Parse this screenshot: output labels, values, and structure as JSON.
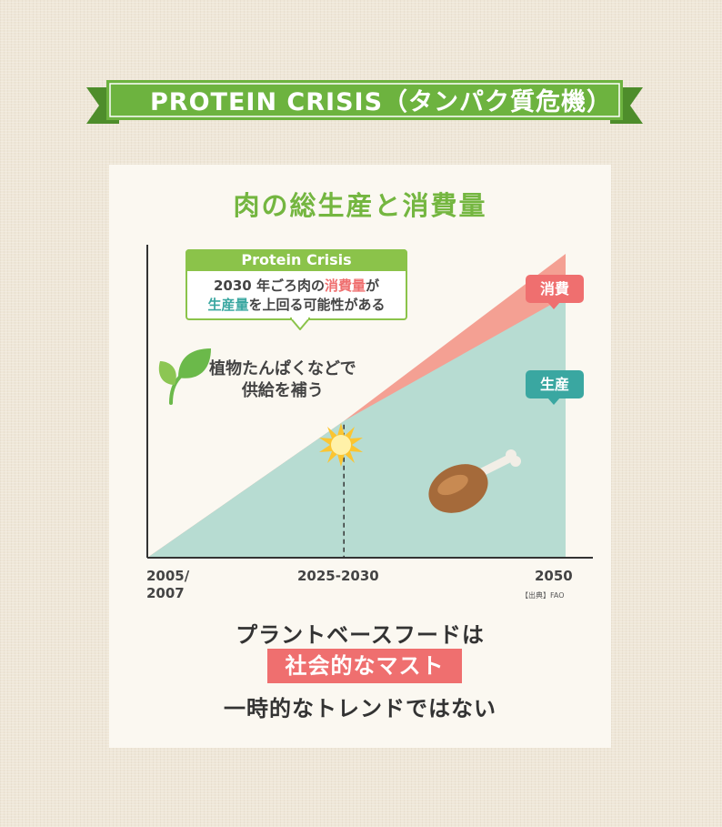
{
  "banner": {
    "title": "PROTEIN CRISIS（タンパク質危機）",
    "color": "#6db33f"
  },
  "chart_data": {
    "type": "area",
    "title": "肉の総生産と消費量",
    "x_tick_labels": [
      "2005/\n2007",
      "2025-2030",
      "2050"
    ],
    "x": [
      0,
      0.47,
      1
    ],
    "ylim": [
      0,
      1
    ],
    "series": [
      {
        "name": "消費",
        "values": [
          0,
          0.45,
          1.0
        ],
        "color": "#f4a093"
      },
      {
        "name": "生産",
        "values": [
          0,
          0.45,
          0.86
        ],
        "color": "#b7dcd2"
      }
    ],
    "crossover_label": "2025-2030",
    "source": "【出典】FAO"
  },
  "callout": {
    "header": "Protein Crisis",
    "line1_prefix": "2030 年ごろ肉の",
    "line1_highlight": "消費量",
    "line1_suffix": "が",
    "line2_highlight": "生産量",
    "line2_suffix": "を上回る可能性がある"
  },
  "plant_note": {
    "line1": "植物たんぱくなどで",
    "line2": "供給を補う"
  },
  "badges": {
    "consumption": "消費",
    "production": "生産"
  },
  "icons": {
    "leaf": "leaf-icon",
    "explosion": "burst-icon",
    "meat": "drumstick-icon"
  },
  "message": {
    "line1": "プラントベースフードは",
    "line2": "社会的なマスト",
    "line3": "一時的なトレンドではない"
  },
  "colors": {
    "accent_green": "#74b640",
    "consumption_red": "#ef6f6f",
    "production_teal": "#3aa7a1"
  }
}
